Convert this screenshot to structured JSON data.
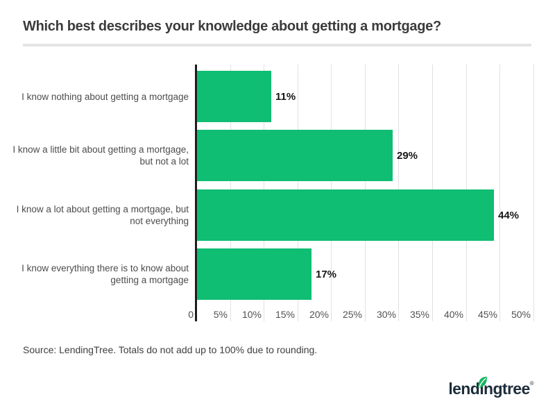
{
  "title": "Which best describes your knowledge about getting a mortgage?",
  "source_note": "Source: LendingTree. Totals do not add up to 100% due to rounding.",
  "chart_data": {
    "type": "bar",
    "orientation": "horizontal",
    "title": "Which best describes your knowledge about getting a mortgage?",
    "categories": [
      "I know nothing about getting a mortgage",
      "I know a little bit about getting a mortgage,\nbut not a lot",
      "I know a lot about getting a mortgage, but\nnot everything",
      "I know everything there is to know about\ngetting a mortgage"
    ],
    "values": [
      11,
      29,
      44,
      17
    ],
    "value_labels": [
      "11%",
      "29%",
      "44%",
      "17%"
    ],
    "x_ticks": [
      "0",
      "5%",
      "10%",
      "15%",
      "20%",
      "25%",
      "30%",
      "35%",
      "40%",
      "45%",
      "50%"
    ],
    "xlim": [
      0,
      50
    ],
    "grid": true,
    "legend": "none",
    "bar_color": "#0fbd73",
    "axis_color": "#1d1d1d",
    "gridline_color": "#e1e1e1"
  },
  "logo": {
    "wordmark_pre": "lend",
    "wordmark_i": "ı",
    "wordmark_post": "ngtree",
    "mark": "®",
    "wordmark_color": "#1e2d3a",
    "leaf_color": "#17b560"
  }
}
